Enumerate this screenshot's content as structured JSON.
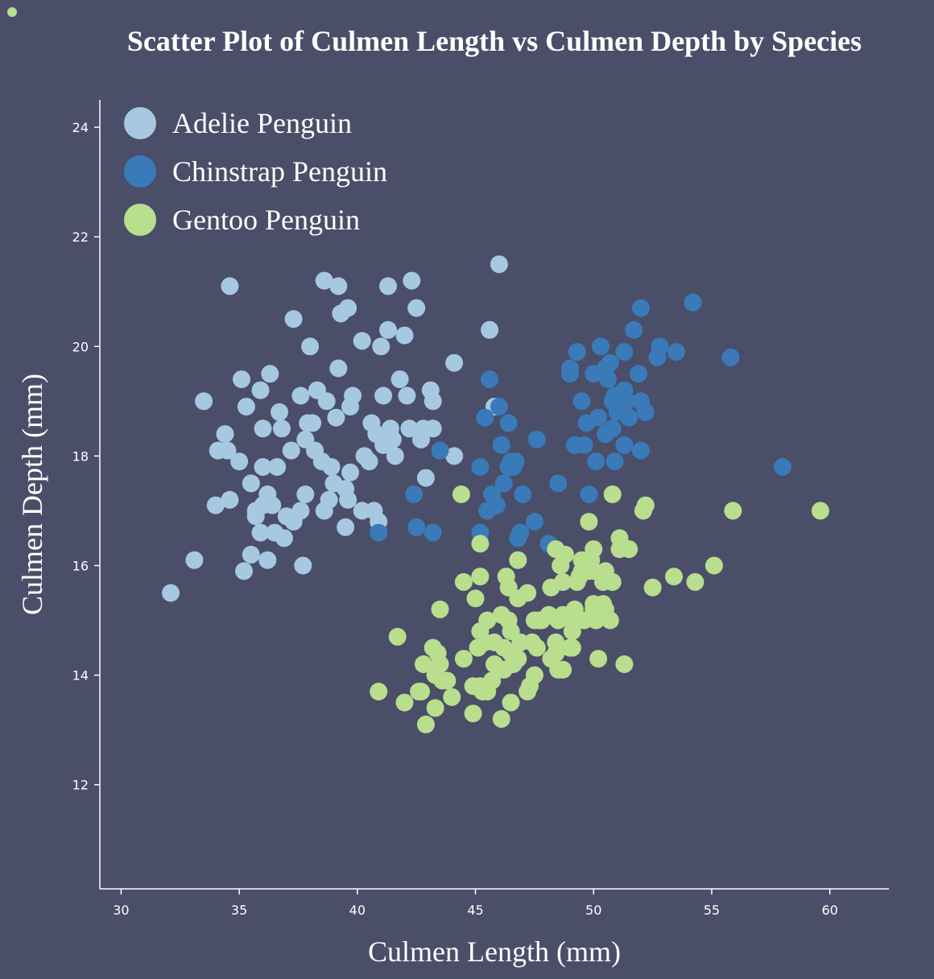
{
  "colors": {
    "background": "#4a4e69",
    "adelie": "#a6c8e0",
    "chinstrap": "#3a7ab8",
    "gentoo": "#b8de8e",
    "axis": "#ffffff"
  },
  "chart_data": {
    "type": "scatter",
    "title": "Scatter Plot of Culmen Length vs Culmen Depth by Species",
    "xlabel": "Culmen Length (mm)",
    "ylabel": "Culmen Depth (mm)",
    "xlim": [
      29.1,
      62.5
    ],
    "ylim": [
      10.1,
      24.5
    ],
    "x_ticks": [
      "30",
      "35",
      "40",
      "45",
      "50",
      "55",
      "60"
    ],
    "y_ticks": [
      "12",
      "14",
      "16",
      "18",
      "20",
      "22",
      "24"
    ],
    "grid": false,
    "legend_position": "top-left",
    "series": [
      {
        "name": "Adelie Penguin",
        "color_key": "adelie",
        "points": [
          [
            32.1,
            15.5
          ],
          [
            33.1,
            16.1
          ],
          [
            33.5,
            19.0
          ],
          [
            34.0,
            17.1
          ],
          [
            34.1,
            18.1
          ],
          [
            34.4,
            18.4
          ],
          [
            34.5,
            18.1
          ],
          [
            34.6,
            21.1
          ],
          [
            34.6,
            17.2
          ],
          [
            35.0,
            17.9
          ],
          [
            35.1,
            19.4
          ],
          [
            35.2,
            15.9
          ],
          [
            35.3,
            18.9
          ],
          [
            35.5,
            16.2
          ],
          [
            35.5,
            17.5
          ],
          [
            35.7,
            16.9
          ],
          [
            35.7,
            17.0
          ],
          [
            35.9,
            16.6
          ],
          [
            35.9,
            19.2
          ],
          [
            36.0,
            17.1
          ],
          [
            36.0,
            18.5
          ],
          [
            36.0,
            17.8
          ],
          [
            36.2,
            16.1
          ],
          [
            36.2,
            17.3
          ],
          [
            36.3,
            19.5
          ],
          [
            36.4,
            17.1
          ],
          [
            36.5,
            16.6
          ],
          [
            36.6,
            17.8
          ],
          [
            36.7,
            18.8
          ],
          [
            36.8,
            18.5
          ],
          [
            36.9,
            16.5
          ],
          [
            37.0,
            16.9
          ],
          [
            37.2,
            18.1
          ],
          [
            37.3,
            20.5
          ],
          [
            37.3,
            16.8
          ],
          [
            37.6,
            19.1
          ],
          [
            37.6,
            17.0
          ],
          [
            37.7,
            16.0
          ],
          [
            37.8,
            17.3
          ],
          [
            37.8,
            18.3
          ],
          [
            37.9,
            18.6
          ],
          [
            38.0,
            20.0
          ],
          [
            38.1,
            18.6
          ],
          [
            38.2,
            18.1
          ],
          [
            38.3,
            19.2
          ],
          [
            38.5,
            17.9
          ],
          [
            38.6,
            21.2
          ],
          [
            38.6,
            17.0
          ],
          [
            38.7,
            19.0
          ],
          [
            38.8,
            17.2
          ],
          [
            38.9,
            17.8
          ],
          [
            39.0,
            17.5
          ],
          [
            39.1,
            18.7
          ],
          [
            39.2,
            21.1
          ],
          [
            39.2,
            19.6
          ],
          [
            39.3,
            20.6
          ],
          [
            39.5,
            16.7
          ],
          [
            39.5,
            17.4
          ],
          [
            39.6,
            17.2
          ],
          [
            39.6,
            20.7
          ],
          [
            39.7,
            17.7
          ],
          [
            39.7,
            18.9
          ],
          [
            39.8,
            19.1
          ],
          [
            40.2,
            17.0
          ],
          [
            40.2,
            20.1
          ],
          [
            40.3,
            18.0
          ],
          [
            40.5,
            17.9
          ],
          [
            40.6,
            18.6
          ],
          [
            40.7,
            17.0
          ],
          [
            40.8,
            18.4
          ],
          [
            40.9,
            16.8
          ],
          [
            41.0,
            20.0
          ],
          [
            41.1,
            18.2
          ],
          [
            41.1,
            19.1
          ],
          [
            41.3,
            20.3
          ],
          [
            41.3,
            21.1
          ],
          [
            41.4,
            18.5
          ],
          [
            41.5,
            18.3
          ],
          [
            41.6,
            18.0
          ],
          [
            41.8,
            19.4
          ],
          [
            42.0,
            20.2
          ],
          [
            42.1,
            19.1
          ],
          [
            42.2,
            18.5
          ],
          [
            42.3,
            21.2
          ],
          [
            42.5,
            20.7
          ],
          [
            42.7,
            18.3
          ],
          [
            42.8,
            18.5
          ],
          [
            42.9,
            17.6
          ],
          [
            43.1,
            19.2
          ],
          [
            43.2,
            19.0
          ],
          [
            43.2,
            18.5
          ],
          [
            44.1,
            18.0
          ],
          [
            44.1,
            19.7
          ],
          [
            45.6,
            20.3
          ],
          [
            45.8,
            18.9
          ],
          [
            46.0,
            21.5
          ]
        ]
      },
      {
        "name": "Chinstrap Penguin",
        "color_key": "chinstrap",
        "points": [
          [
            40.9,
            16.6
          ],
          [
            42.4,
            17.3
          ],
          [
            42.5,
            16.7
          ],
          [
            43.2,
            16.6
          ],
          [
            43.5,
            18.1
          ],
          [
            45.2,
            17.8
          ],
          [
            45.2,
            16.6
          ],
          [
            45.4,
            18.7
          ],
          [
            45.5,
            17.0
          ],
          [
            45.6,
            19.4
          ],
          [
            45.7,
            17.3
          ],
          [
            45.9,
            17.1
          ],
          [
            46.0,
            18.9
          ],
          [
            46.1,
            18.2
          ],
          [
            46.2,
            17.5
          ],
          [
            46.4,
            18.6
          ],
          [
            46.4,
            17.8
          ],
          [
            46.5,
            17.9
          ],
          [
            46.6,
            17.8
          ],
          [
            46.7,
            17.9
          ],
          [
            46.8,
            16.5
          ],
          [
            46.9,
            16.6
          ],
          [
            47.0,
            17.3
          ],
          [
            47.5,
            16.8
          ],
          [
            47.6,
            18.3
          ],
          [
            48.1,
            16.4
          ],
          [
            48.5,
            17.5
          ],
          [
            49.0,
            19.5
          ],
          [
            49.0,
            19.6
          ],
          [
            49.2,
            18.2
          ],
          [
            49.3,
            19.9
          ],
          [
            49.5,
            19.0
          ],
          [
            49.6,
            18.2
          ],
          [
            49.7,
            18.6
          ],
          [
            49.8,
            17.3
          ],
          [
            50.0,
            19.5
          ],
          [
            50.1,
            17.9
          ],
          [
            50.2,
            18.7
          ],
          [
            50.3,
            20.0
          ],
          [
            50.5,
            18.4
          ],
          [
            50.5,
            19.6
          ],
          [
            50.6,
            19.4
          ],
          [
            50.7,
            19.7
          ],
          [
            50.8,
            18.5
          ],
          [
            50.8,
            19.0
          ],
          [
            50.9,
            17.9
          ],
          [
            50.9,
            19.1
          ],
          [
            51.0,
            18.8
          ],
          [
            51.3,
            18.2
          ],
          [
            51.3,
            19.2
          ],
          [
            51.3,
            19.9
          ],
          [
            51.4,
            19.0
          ],
          [
            51.5,
            18.7
          ],
          [
            51.7,
            20.3
          ],
          [
            51.9,
            19.5
          ],
          [
            52.0,
            18.1
          ],
          [
            52.0,
            19.0
          ],
          [
            52.0,
            20.7
          ],
          [
            52.2,
            18.8
          ],
          [
            52.7,
            19.8
          ],
          [
            52.8,
            20.0
          ],
          [
            53.5,
            19.9
          ],
          [
            54.2,
            20.8
          ],
          [
            55.8,
            19.8
          ],
          [
            58.0,
            17.8
          ]
        ]
      },
      {
        "name": "Gentoo Penguin",
        "color_key": "gentoo",
        "points": [
          [
            40.9,
            13.7
          ],
          [
            41.7,
            14.7
          ],
          [
            42.0,
            13.5
          ],
          [
            42.6,
            13.7
          ],
          [
            42.7,
            13.7
          ],
          [
            42.8,
            14.2
          ],
          [
            42.9,
            13.1
          ],
          [
            43.2,
            14.5
          ],
          [
            43.3,
            13.4
          ],
          [
            43.3,
            14.0
          ],
          [
            43.4,
            14.4
          ],
          [
            43.5,
            14.2
          ],
          [
            43.5,
            15.2
          ],
          [
            43.6,
            13.9
          ],
          [
            43.8,
            13.9
          ],
          [
            44.0,
            13.6
          ],
          [
            44.4,
            17.3
          ],
          [
            44.5,
            14.3
          ],
          [
            44.5,
            15.7
          ],
          [
            44.9,
            13.3
          ],
          [
            44.9,
            13.8
          ],
          [
            45.0,
            15.4
          ],
          [
            45.1,
            14.5
          ],
          [
            45.2,
            13.8
          ],
          [
            45.2,
            14.8
          ],
          [
            45.2,
            15.8
          ],
          [
            45.2,
            16.4
          ],
          [
            45.3,
            13.7
          ],
          [
            45.4,
            14.6
          ],
          [
            45.5,
            13.7
          ],
          [
            45.5,
            15.0
          ],
          [
            45.7,
            13.9
          ],
          [
            45.8,
            14.2
          ],
          [
            45.8,
            14.6
          ],
          [
            46.1,
            13.2
          ],
          [
            46.1,
            15.1
          ],
          [
            46.2,
            14.1
          ],
          [
            46.2,
            14.5
          ],
          [
            46.3,
            15.8
          ],
          [
            46.4,
            15.0
          ],
          [
            46.4,
            15.6
          ],
          [
            46.5,
            13.5
          ],
          [
            46.5,
            14.4
          ],
          [
            46.5,
            14.8
          ],
          [
            46.6,
            14.2
          ],
          [
            46.8,
            14.3
          ],
          [
            46.8,
            15.4
          ],
          [
            46.8,
            16.1
          ],
          [
            46.9,
            14.6
          ],
          [
            47.2,
            13.7
          ],
          [
            47.2,
            15.5
          ],
          [
            47.3,
            13.8
          ],
          [
            47.4,
            14.6
          ],
          [
            47.5,
            14.0
          ],
          [
            47.5,
            15.0
          ],
          [
            47.6,
            14.5
          ],
          [
            47.7,
            15.0
          ],
          [
            47.8,
            15.0
          ],
          [
            48.1,
            15.1
          ],
          [
            48.2,
            14.3
          ],
          [
            48.2,
            15.6
          ],
          [
            48.4,
            14.4
          ],
          [
            48.4,
            14.6
          ],
          [
            48.4,
            16.3
          ],
          [
            48.5,
            14.1
          ],
          [
            48.5,
            15.0
          ],
          [
            48.6,
            16.0
          ],
          [
            48.7,
            14.1
          ],
          [
            48.7,
            15.1
          ],
          [
            48.7,
            15.7
          ],
          [
            48.8,
            16.2
          ],
          [
            49.0,
            14.5
          ],
          [
            49.1,
            14.5
          ],
          [
            49.1,
            14.8
          ],
          [
            49.1,
            15.0
          ],
          [
            49.2,
            15.2
          ],
          [
            49.3,
            15.7
          ],
          [
            49.4,
            15.8
          ],
          [
            49.5,
            15.9
          ],
          [
            49.5,
            16.1
          ],
          [
            49.6,
            15.0
          ],
          [
            49.6,
            16.0
          ],
          [
            49.8,
            15.9
          ],
          [
            49.8,
            16.8
          ],
          [
            49.9,
            16.1
          ],
          [
            50.0,
            15.2
          ],
          [
            50.0,
            15.3
          ],
          [
            50.0,
            15.9
          ],
          [
            50.0,
            16.3
          ],
          [
            50.1,
            15.0
          ],
          [
            50.2,
            14.3
          ],
          [
            50.4,
            15.3
          ],
          [
            50.4,
            15.7
          ],
          [
            50.5,
            15.2
          ],
          [
            50.5,
            15.9
          ],
          [
            50.7,
            15.0
          ],
          [
            50.8,
            15.7
          ],
          [
            50.8,
            17.3
          ],
          [
            51.1,
            16.3
          ],
          [
            51.1,
            16.5
          ],
          [
            51.3,
            14.2
          ],
          [
            51.5,
            16.3
          ],
          [
            52.1,
            17.0
          ],
          [
            52.2,
            17.1
          ],
          [
            52.5,
            15.6
          ],
          [
            53.4,
            15.8
          ],
          [
            54.3,
            15.7
          ],
          [
            55.1,
            16.0
          ],
          [
            55.9,
            17.0
          ],
          [
            59.6,
            17.0
          ]
        ]
      }
    ]
  }
}
